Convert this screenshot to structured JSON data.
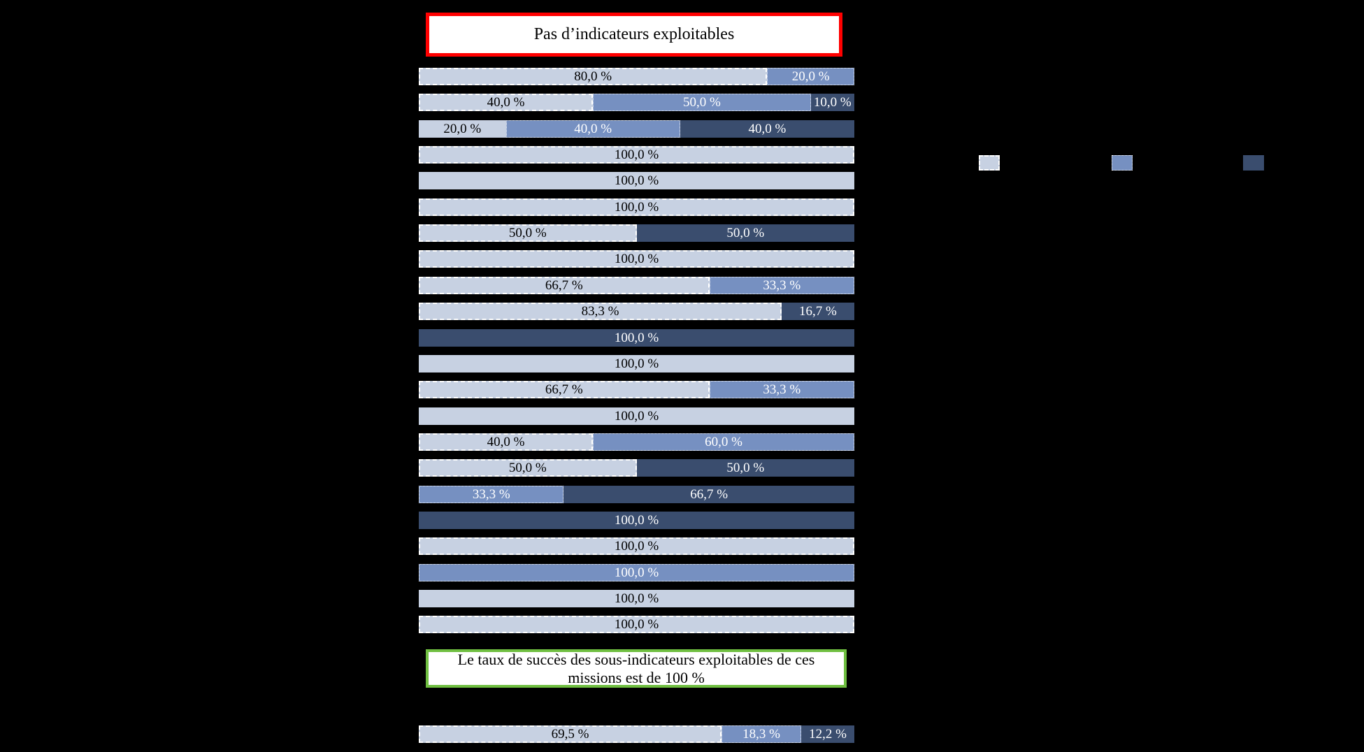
{
  "title_box": {
    "text": "Pas d’indicateurs exploitables",
    "border_color": "#ff0000",
    "background": "#ffffff"
  },
  "note_box": {
    "text": "Le taux de succès des sous-indicateurs exploitables de ces missions est de 100 %",
    "border_color": "#70bf41",
    "background": "#ffffff"
  },
  "colors": {
    "light": "#c7d1e2",
    "medium": "#7690c1",
    "dark": "#3a4d6e",
    "label_on_light": "#000000",
    "label_on_medium": "#ffffff",
    "label_on_dark": "#ffffff",
    "background": "#000000"
  },
  "legend": [
    {
      "swatch": "light",
      "outline": "dashed"
    },
    {
      "swatch": "medium",
      "outline": "dotted"
    },
    {
      "swatch": "dark",
      "outline": "solid"
    }
  ],
  "chart_data": {
    "type": "bar",
    "orientation": "horizontal-stacked",
    "value_unit": "percent",
    "value_format": "fr (comma decimal, space before %)",
    "x_range": [
      0,
      100
    ],
    "rows": [
      {
        "segments": [
          {
            "color": "light",
            "value": 80.0,
            "label": "80,0 %",
            "outline": "dashed"
          },
          {
            "color": "medium",
            "value": 20.0,
            "label": "20,0 %",
            "outline": "dotted"
          }
        ]
      },
      {
        "segments": [
          {
            "color": "light",
            "value": 40.0,
            "label": "40,0 %",
            "outline": "dashed"
          },
          {
            "color": "medium",
            "value": 50.0,
            "label": "50,0 %",
            "outline": "dotted"
          },
          {
            "color": "dark",
            "value": 10.0,
            "label": "10,0 %",
            "outline": "solid"
          }
        ]
      },
      {
        "segments": [
          {
            "color": "light",
            "value": 20.0,
            "label": "20,0 %",
            "outline": "solid"
          },
          {
            "color": "medium",
            "value": 40.0,
            "label": "40,0 %",
            "outline": "dotted"
          },
          {
            "color": "dark",
            "value": 40.0,
            "label": "40,0 %",
            "outline": "solid"
          }
        ]
      },
      {
        "segments": [
          {
            "color": "light",
            "value": 100.0,
            "label": "100,0 %",
            "outline": "dashed"
          }
        ]
      },
      {
        "segments": [
          {
            "color": "light",
            "value": 100.0,
            "label": "100,0 %",
            "outline": "solid"
          }
        ]
      },
      {
        "segments": [
          {
            "color": "light",
            "value": 100.0,
            "label": "100,0 %",
            "outline": "dashed"
          }
        ]
      },
      {
        "segments": [
          {
            "color": "light",
            "value": 50.0,
            "label": "50,0 %",
            "outline": "dashed"
          },
          {
            "color": "dark",
            "value": 50.0,
            "label": "50,0 %",
            "outline": "solid"
          }
        ]
      },
      {
        "segments": [
          {
            "color": "light",
            "value": 100.0,
            "label": "100,0 %",
            "outline": "dashed"
          }
        ]
      },
      {
        "segments": [
          {
            "color": "light",
            "value": 66.7,
            "label": "66,7 %",
            "outline": "dashed"
          },
          {
            "color": "medium",
            "value": 33.3,
            "label": "33,3 %",
            "outline": "dotted"
          }
        ]
      },
      {
        "segments": [
          {
            "color": "light",
            "value": 83.3,
            "label": "83,3 %",
            "outline": "dashed"
          },
          {
            "color": "dark",
            "value": 16.7,
            "label": "16,7 %",
            "outline": "solid"
          }
        ]
      },
      {
        "segments": [
          {
            "color": "dark",
            "value": 100.0,
            "label": "100,0 %",
            "outline": "solid"
          }
        ]
      },
      {
        "segments": [
          {
            "color": "light",
            "value": 100.0,
            "label": "100,0 %",
            "outline": "solid"
          }
        ]
      },
      {
        "segments": [
          {
            "color": "light",
            "value": 66.7,
            "label": "66,7 %",
            "outline": "dashed"
          },
          {
            "color": "medium",
            "value": 33.3,
            "label": "33,3 %",
            "outline": "dotted"
          }
        ]
      },
      {
        "segments": [
          {
            "color": "light",
            "value": 100.0,
            "label": "100,0 %",
            "outline": "solid"
          }
        ]
      },
      {
        "segments": [
          {
            "color": "light",
            "value": 40.0,
            "label": "40,0 %",
            "outline": "dashed"
          },
          {
            "color": "medium",
            "value": 60.0,
            "label": "60,0 %",
            "outline": "dotted"
          }
        ]
      },
      {
        "segments": [
          {
            "color": "light",
            "value": 50.0,
            "label": "50,0 %",
            "outline": "dashed"
          },
          {
            "color": "dark",
            "value": 50.0,
            "label": "50,0 %",
            "outline": "solid"
          }
        ]
      },
      {
        "segments": [
          {
            "color": "medium",
            "value": 33.3,
            "label": "33,3 %",
            "outline": "dotted"
          },
          {
            "color": "dark",
            "value": 66.7,
            "label": "66,7 %",
            "outline": "solid"
          }
        ]
      },
      {
        "segments": [
          {
            "color": "dark",
            "value": 100.0,
            "label": "100,0 %",
            "outline": "solid"
          }
        ]
      },
      {
        "segments": [
          {
            "color": "light",
            "value": 100.0,
            "label": "100,0 %",
            "outline": "dashed"
          }
        ]
      },
      {
        "segments": [
          {
            "color": "medium",
            "value": 100.0,
            "label": "100,0 %",
            "outline": "dotted"
          }
        ]
      },
      {
        "segments": [
          {
            "color": "light",
            "value": 100.0,
            "label": "100,0 %",
            "outline": "solid"
          }
        ]
      },
      {
        "segments": [
          {
            "color": "light",
            "value": 100.0,
            "label": "100,0 %",
            "outline": "dashed"
          }
        ]
      }
    ],
    "total_row": {
      "segments": [
        {
          "color": "light",
          "value": 69.5,
          "label": "69,5 %",
          "outline": "dashed"
        },
        {
          "color": "medium",
          "value": 18.3,
          "label": "18,3 %",
          "outline": "dotted"
        },
        {
          "color": "dark",
          "value": 12.2,
          "label": "12,2 %",
          "outline": "solid"
        }
      ]
    }
  }
}
